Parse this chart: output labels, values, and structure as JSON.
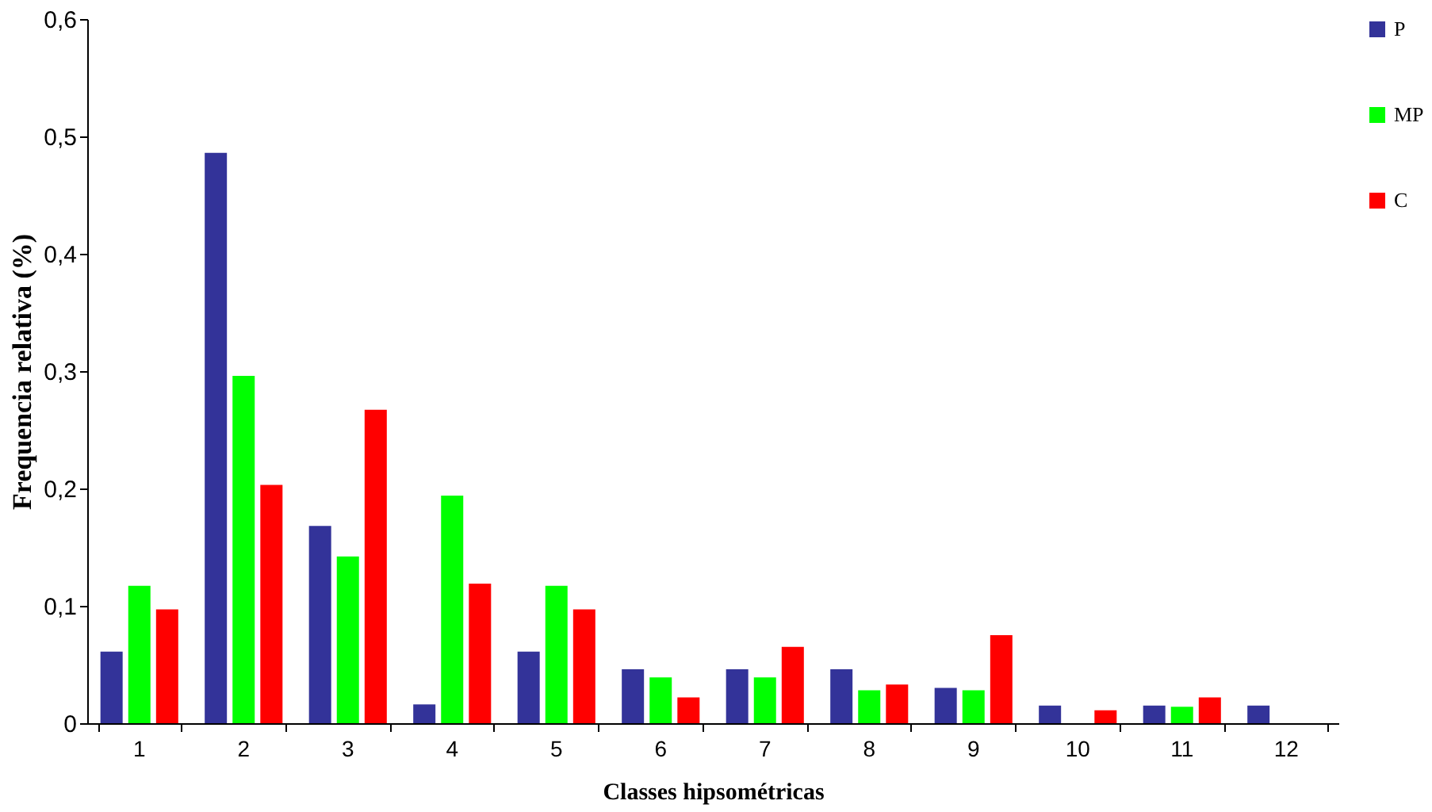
{
  "chart_data": {
    "type": "bar",
    "xlabel": "Classes hipsométricas",
    "ylabel": "Frequencia relativa (%)",
    "categories": [
      "1",
      "2",
      "3",
      "4",
      "5",
      "6",
      "7",
      "8",
      "9",
      "10",
      "11",
      "12"
    ],
    "series": [
      {
        "name": "P",
        "color": "#333399",
        "values": [
          0.061,
          0.486,
          0.168,
          0.016,
          0.061,
          0.046,
          0.046,
          0.046,
          0.03,
          0.015,
          0.015,
          0.015
        ]
      },
      {
        "name": "MP",
        "color": "#00ff00",
        "values": [
          0.117,
          0.296,
          0.142,
          0.194,
          0.117,
          0.039,
          0.039,
          0.028,
          0.028,
          null,
          0.014,
          null
        ]
      },
      {
        "name": "C",
        "color": "#ff0000",
        "values": [
          0.097,
          0.203,
          0.267,
          0.119,
          0.097,
          0.022,
          0.065,
          0.033,
          0.075,
          0.011,
          0.022,
          null
        ]
      }
    ],
    "ylim": [
      0,
      0.6
    ],
    "yticks": [
      0,
      {
        "value": 0.1,
        "label": "0,1"
      },
      {
        "value": 0.2,
        "label": "0,2"
      },
      {
        "value": 0.3,
        "label": "0,3"
      },
      {
        "value": 0.4,
        "label": "0,4"
      },
      {
        "value": 0.5,
        "label": "0,5"
      },
      {
        "value": 0.6,
        "label": "0,6"
      }
    ],
    "grid": false,
    "legend": "right"
  }
}
